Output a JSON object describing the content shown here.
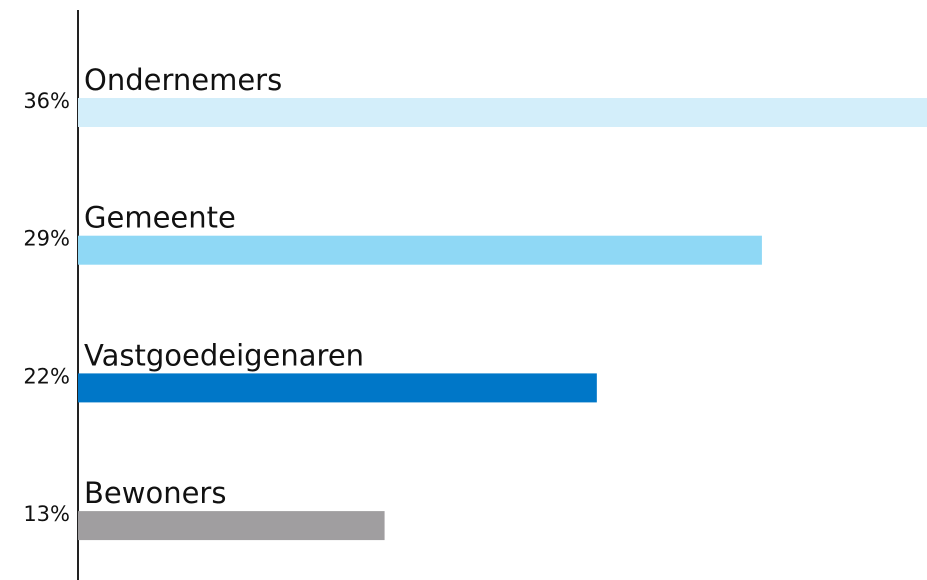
{
  "chart_data": {
    "type": "hbar",
    "categories": [
      "Ondernemers",
      "Gemeente",
      "Vastgoedeigenaren",
      "Bewoners"
    ],
    "values": [
      36,
      29,
      22,
      13
    ],
    "value_labels": [
      "36%",
      "29%",
      "22%",
      "13%"
    ],
    "colors": [
      "#d3eefa",
      "#8fd8f5",
      "#0077c8",
      "#a09ea0"
    ]
  }
}
